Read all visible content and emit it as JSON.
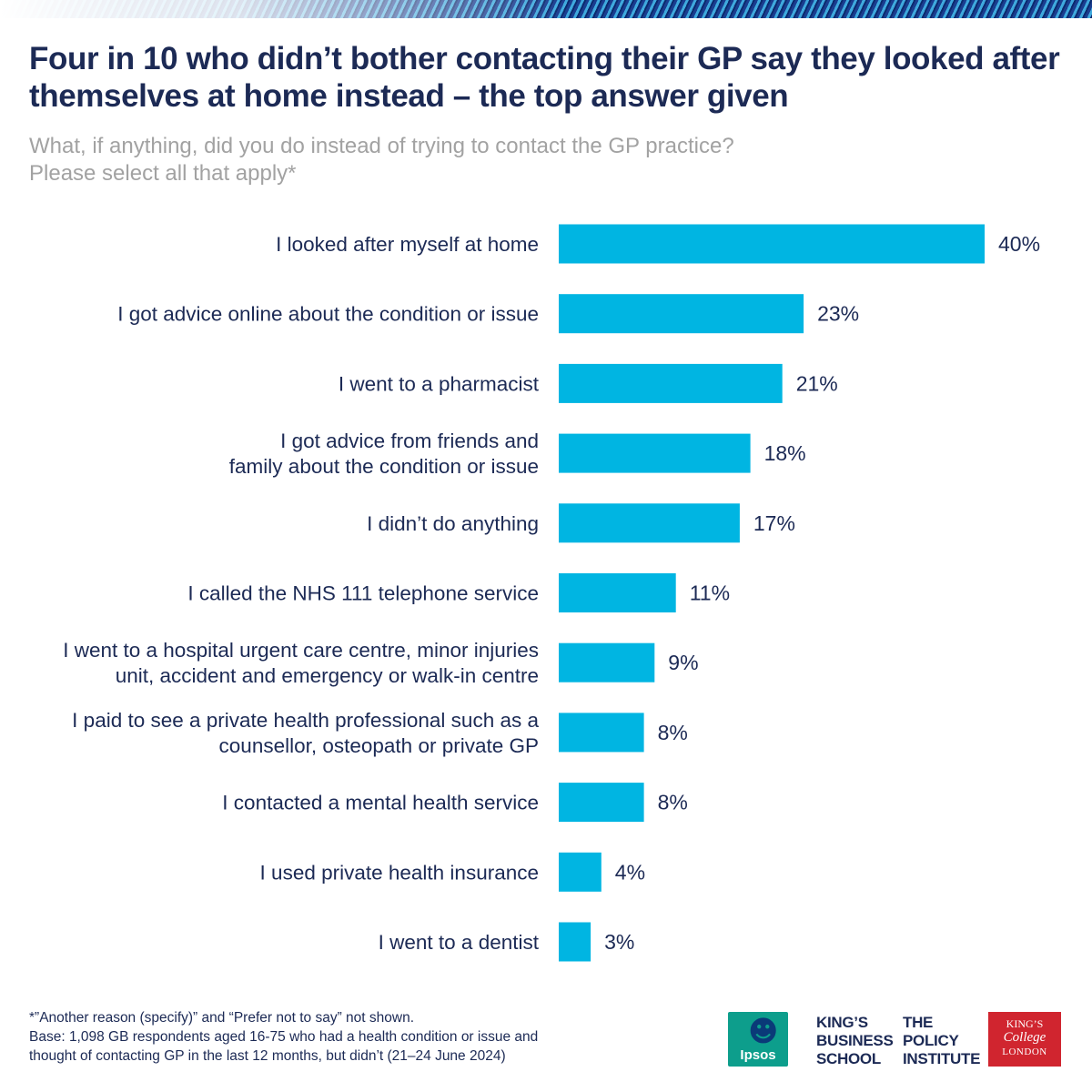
{
  "header": {
    "title_lines": [
      "Four in 10 who didn’t bother contacting their GP say they looked after",
      "themselves at home instead – the top answer given"
    ],
    "subtitle_lines": [
      "What, if anything, did you do instead of trying to contact the GP practice?",
      "Please select all that apply*"
    ]
  },
  "colors": {
    "bar": "#00b5e2",
    "text": "#1c2a55",
    "subtitle": "#a2a2a2"
  },
  "chart_data": {
    "type": "bar",
    "orientation": "horizontal",
    "grid": false,
    "xlim": [
      0,
      40
    ],
    "categories": [
      [
        "I looked after myself at home"
      ],
      [
        "I got advice online about the condition or issue"
      ],
      [
        "I went to a pharmacist"
      ],
      [
        "I got advice from friends and",
        "family about the condition or issue"
      ],
      [
        "I didn’t do anything"
      ],
      [
        "I called the NHS 111 telephone service"
      ],
      [
        "I went to a hospital urgent care centre, minor injuries",
        "unit, accident and emergency or walk-in centre"
      ],
      [
        "I paid to see a private health professional such as a",
        "counsellor, osteopath or private GP"
      ],
      [
        "I contacted a mental health service"
      ],
      [
        "I used private health insurance"
      ],
      [
        "I went to a dentist"
      ]
    ],
    "values": [
      40,
      23,
      21,
      18,
      17,
      11,
      9,
      8,
      8,
      4,
      3
    ],
    "value_labels": [
      "40%",
      "23%",
      "21%",
      "18%",
      "17%",
      "11%",
      "9%",
      "8%",
      "8%",
      "4%",
      "3%"
    ]
  },
  "footer": {
    "note_lines": [
      "*”Another reason (specify)” and “Prefer not to say” not shown.",
      "Base: 1,098 GB respondents aged 16-75 who had a health condition or issue and",
      "thought of contacting GP in the last 12 months, but didn’t (21–24 June 2024)"
    ],
    "logos": {
      "ipsos": "Ipsos",
      "kbs": [
        "KING’S",
        "BUSINESS",
        "SCHOOL"
      ],
      "tpi": [
        "THE",
        "POLICY",
        "INSTITUTE"
      ],
      "kcl": [
        "KING’S",
        "College",
        "LONDON"
      ]
    }
  }
}
